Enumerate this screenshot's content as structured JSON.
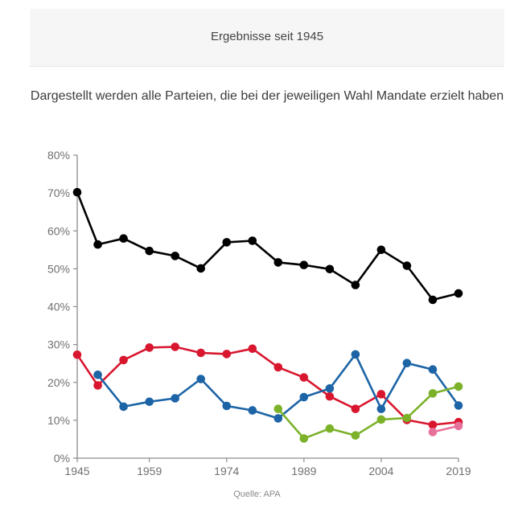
{
  "header": {
    "title": "Ergebnisse seit 1945"
  },
  "subtitle": "Dargestellt werden alle Parteien, die bei der jeweiligen Wahl Mandate erzielt haben",
  "source": "Quelle: APA",
  "chart_data": {
    "type": "line",
    "title": "Ergebnisse seit 1945",
    "subtitle": "Dargestellt werden alle Parteien, die bei der jeweiligen Wahl Mandate erzielt haben",
    "xlabel": "",
    "ylabel": "",
    "xlim": [
      1945,
      2019
    ],
    "ylim": [
      0,
      80
    ],
    "xticks": [
      1945,
      1959,
      1974,
      1989,
      2004,
      2019
    ],
    "xtick_labels": [
      "1945",
      "1959",
      "1974",
      "1989",
      "2004",
      "2019"
    ],
    "yticks": [
      0,
      10,
      20,
      30,
      40,
      50,
      60,
      70,
      80
    ],
    "ytick_labels": [
      "0%",
      "10%",
      "20%",
      "30%",
      "40%",
      "50%",
      "60%",
      "70%",
      "80%"
    ],
    "grid": false,
    "legend": "none",
    "series": [
      {
        "name": "black",
        "color": "#000000",
        "x": [
          1945,
          1949,
          1954,
          1959,
          1964,
          1969,
          1974,
          1979,
          1984,
          1989,
          1994,
          1999,
          2004,
          2009,
          2014,
          2019
        ],
        "values": [
          70.2,
          56.4,
          58.0,
          54.7,
          53.4,
          50.1,
          57.0,
          57.4,
          51.7,
          51.0,
          49.9,
          45.7,
          55.0,
          50.8,
          41.8,
          43.5
        ]
      },
      {
        "name": "red",
        "color": "#d8172f",
        "x": [
          1945,
          1949,
          1954,
          1959,
          1964,
          1969,
          1974,
          1979,
          1984,
          1989,
          1994,
          1999,
          2004,
          2009,
          2014,
          2019
        ],
        "values": [
          27.3,
          19.2,
          25.9,
          29.2,
          29.4,
          27.8,
          27.5,
          28.9,
          24.0,
          21.3,
          16.3,
          13.0,
          16.9,
          10.1,
          8.8,
          9.5
        ]
      },
      {
        "name": "blue",
        "color": "#1c64a6",
        "x": [
          1949,
          1954,
          1959,
          1964,
          1969,
          1974,
          1979,
          1984,
          1989,
          1994,
          1999,
          2004,
          2009,
          2014,
          2019
        ],
        "values": [
          22.0,
          13.6,
          14.9,
          15.8,
          20.9,
          13.8,
          12.6,
          10.5,
          16.1,
          18.4,
          27.4,
          13.0,
          25.1,
          23.4,
          13.9
        ]
      },
      {
        "name": "green",
        "color": "#7cb22a",
        "x": [
          1984,
          1989,
          1994,
          1999,
          2004,
          2009,
          2014,
          2019
        ],
        "values": [
          13.0,
          5.2,
          7.8,
          6.0,
          10.2,
          10.6,
          17.1,
          18.9
        ]
      },
      {
        "name": "pink",
        "color": "#e8719b",
        "x": [
          2014,
          2019
        ],
        "values": [
          6.9,
          8.5
        ]
      }
    ]
  }
}
